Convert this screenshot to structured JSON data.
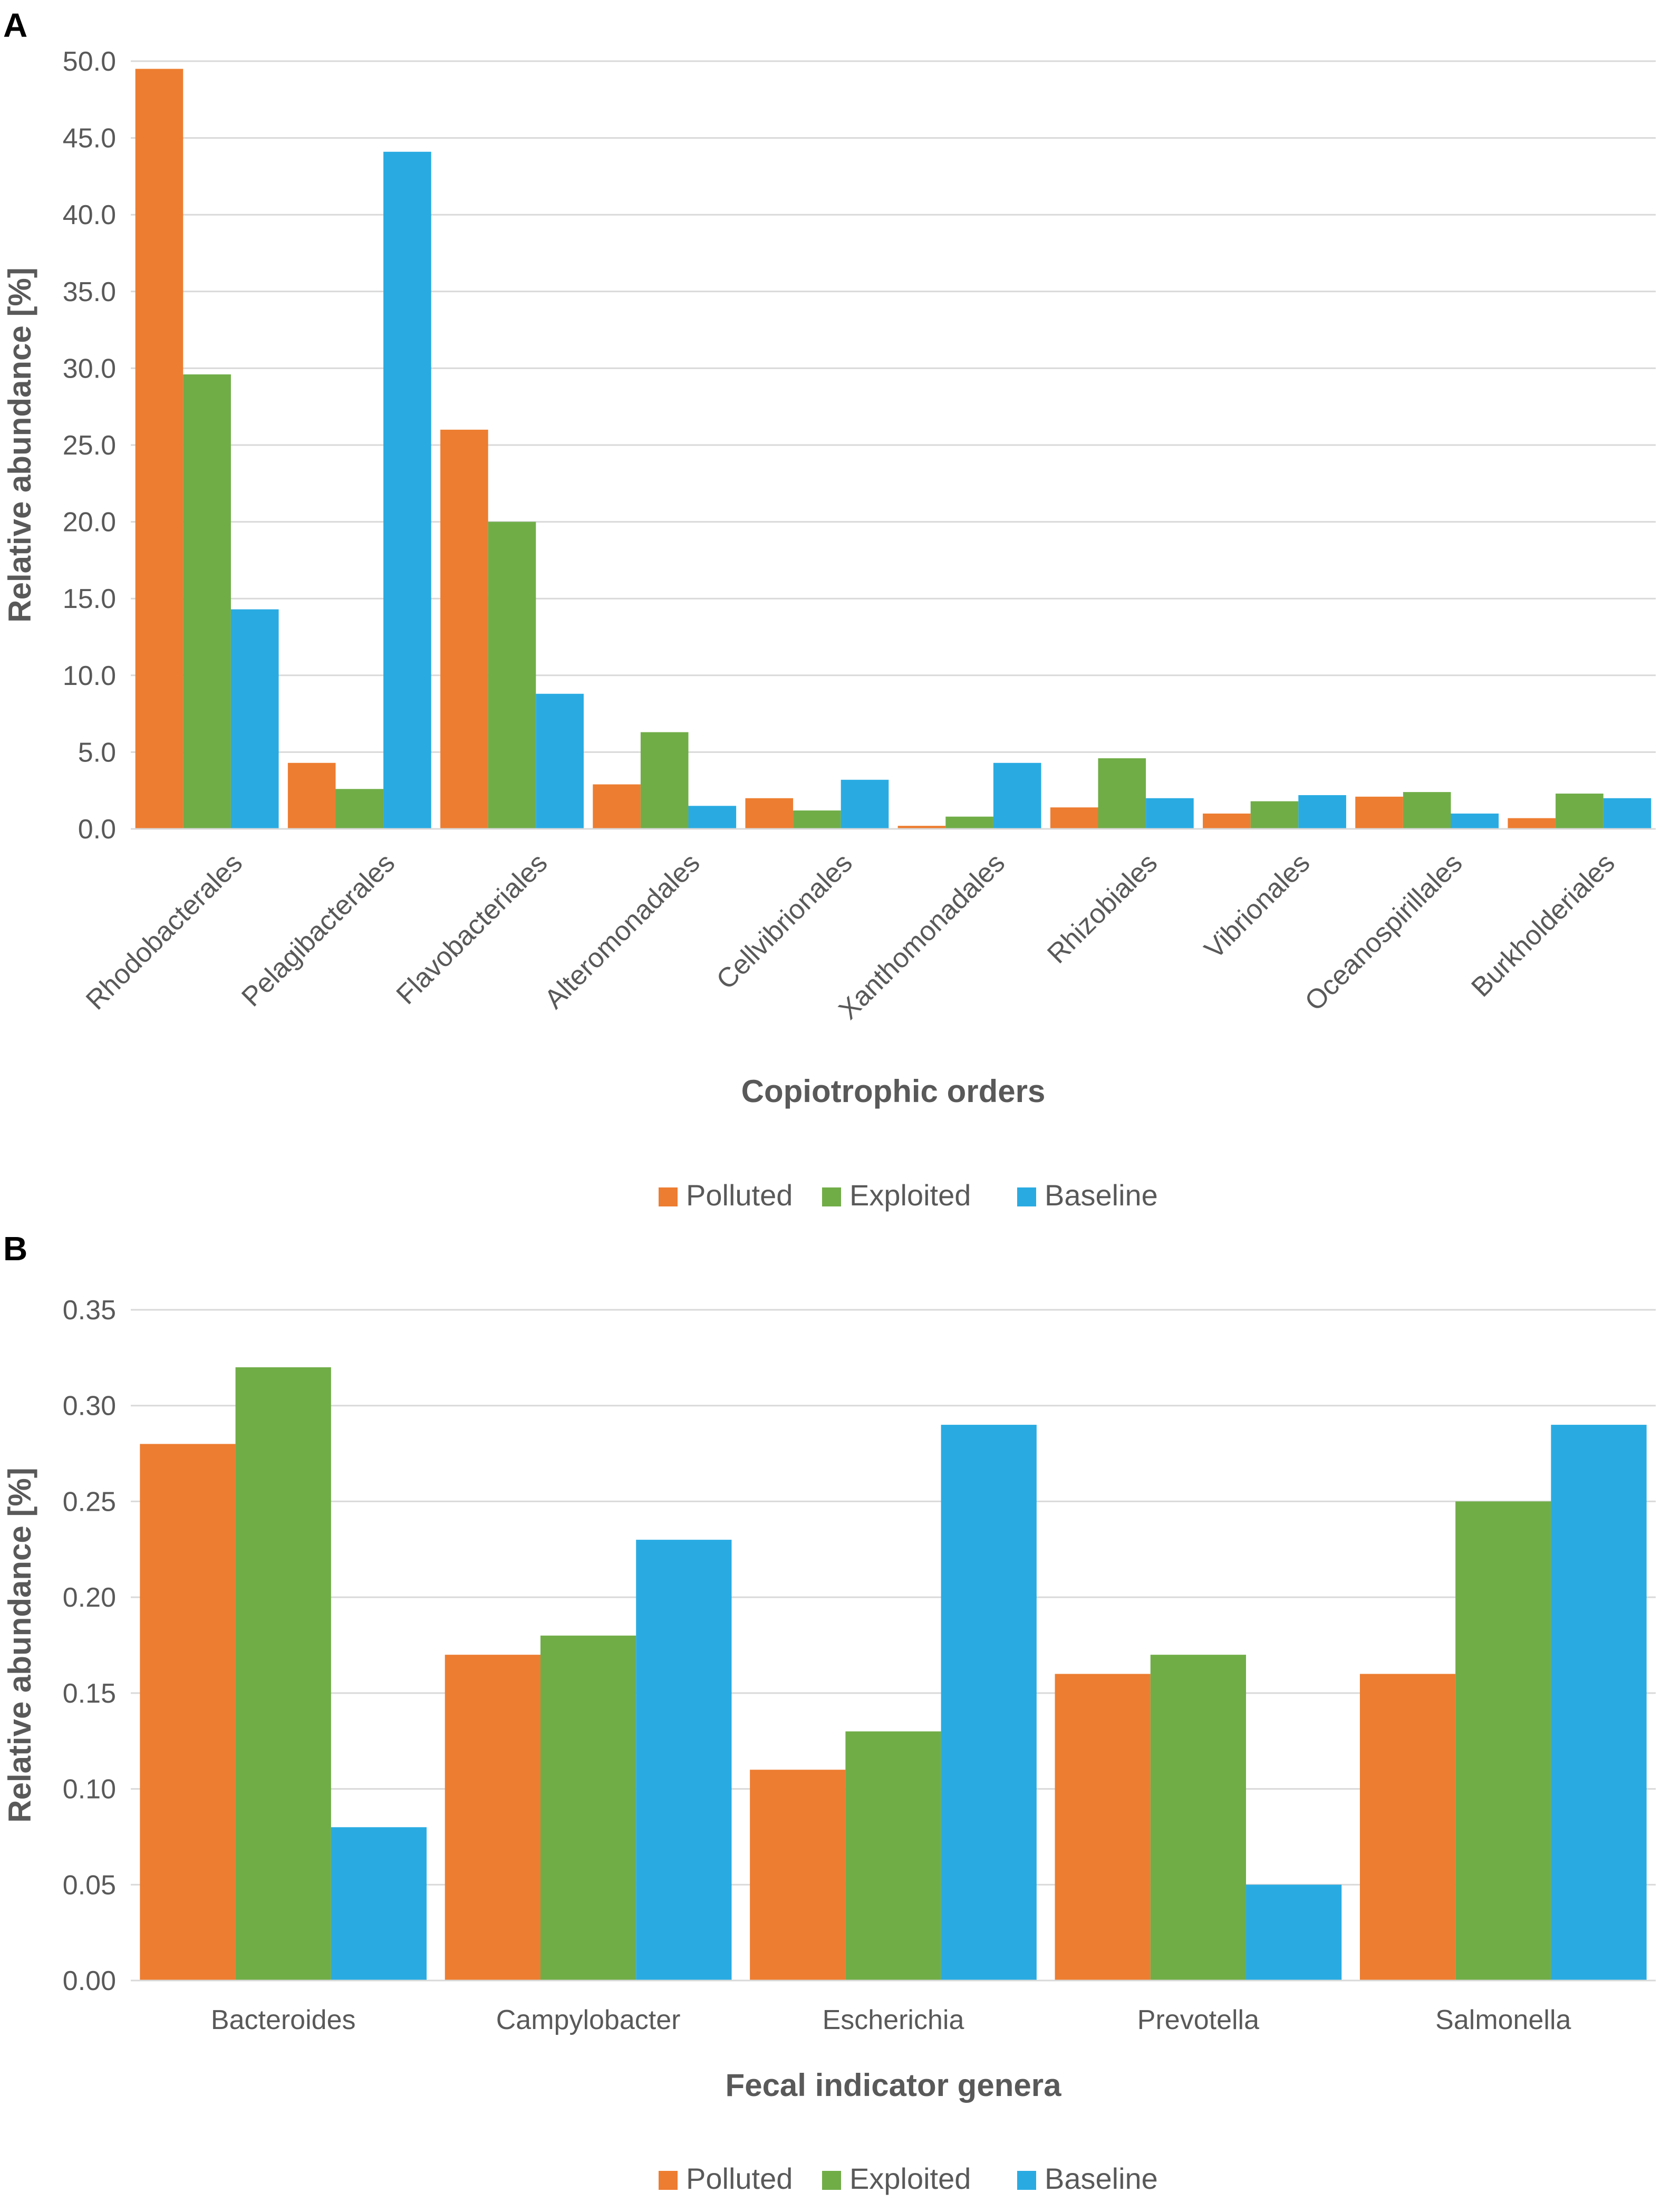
{
  "colors": {
    "polluted": "#ED7D31",
    "exploited": "#70AD47",
    "baseline": "#29ABE2",
    "grid": "#D9D9D9",
    "text": "#595959"
  },
  "legend": [
    "Polluted",
    "Exploited",
    "Baseline"
  ],
  "chart_data": [
    {
      "type": "bar",
      "panel_label": "A",
      "title": "",
      "xlabel": "Copiotrophic orders",
      "ylabel": "Relative abundance [%]",
      "ylim": [
        0,
        50
      ],
      "yticks": [
        "0.0",
        "5.0",
        "10.0",
        "15.0",
        "20.0",
        "25.0",
        "30.0",
        "35.0",
        "40.0",
        "45.0",
        "50.0"
      ],
      "categories": [
        "Rhodobacterales",
        "Pelagibacterales",
        "Flavobacteriales",
        "Alteromonadales",
        "Cellvibrionales",
        "Xanthomonadales",
        "Rhizobiales",
        "Vibrionales",
        "Oceanospirillales",
        "Burkholderiales"
      ],
      "series": [
        {
          "name": "Polluted",
          "values": [
            49.5,
            4.3,
            26.0,
            2.9,
            2.0,
            0.2,
            1.4,
            1.0,
            2.1,
            0.7
          ]
        },
        {
          "name": "Exploited",
          "values": [
            29.6,
            2.6,
            20.0,
            6.3,
            1.2,
            0.8,
            4.6,
            1.8,
            2.4,
            2.3
          ]
        },
        {
          "name": "Baseline",
          "values": [
            14.3,
            44.1,
            8.8,
            1.5,
            3.2,
            4.3,
            2.0,
            2.2,
            1.0,
            2.0
          ]
        }
      ]
    },
    {
      "type": "bar",
      "panel_label": "B",
      "title": "",
      "xlabel": "Fecal indicator genera",
      "ylabel": "Relative abundance [%]",
      "ylim": [
        0,
        0.35
      ],
      "yticks": [
        "0.00",
        "0.05",
        "0.10",
        "0.15",
        "0.20",
        "0.25",
        "0.30",
        "0.35"
      ],
      "categories": [
        "Bacteroides",
        "Campylobacter",
        "Escherichia",
        "Prevotella",
        "Salmonella"
      ],
      "series": [
        {
          "name": "Polluted",
          "values": [
            0.28,
            0.17,
            0.11,
            0.16,
            0.16
          ]
        },
        {
          "name": "Exploited",
          "values": [
            0.32,
            0.18,
            0.13,
            0.17,
            0.25
          ]
        },
        {
          "name": "Baseline",
          "values": [
            0.08,
            0.23,
            0.29,
            0.05,
            0.29
          ]
        }
      ]
    }
  ]
}
